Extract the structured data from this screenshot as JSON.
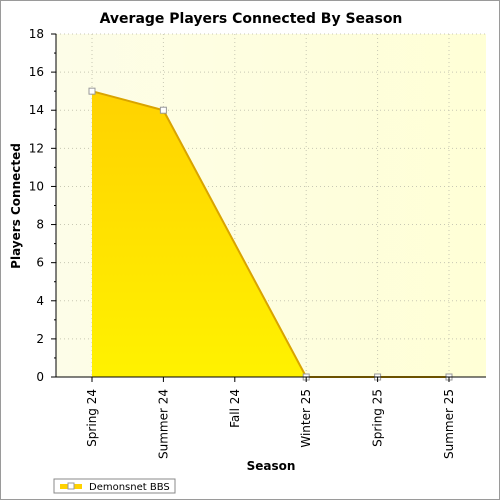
{
  "chart_data": {
    "type": "area",
    "title": "Average Players Connected By Season",
    "xlabel": "Season",
    "ylabel": "Players Connected",
    "categories": [
      "Spring 24",
      "Summer 24",
      "Fall 24",
      "Winter 25",
      "Spring 25",
      "Summer 25"
    ],
    "series": [
      {
        "name": "Demonsnet BBS",
        "values": [
          15,
          14,
          null,
          0,
          0,
          0
        ]
      }
    ],
    "ylim": [
      0,
      18
    ],
    "yticks": [
      "0",
      "2",
      "4",
      "6",
      "8",
      "10",
      "12",
      "14",
      "16",
      "18"
    ],
    "grid": true,
    "legend_position": "bottom-left",
    "colors": {
      "fill_top": "#ffd200",
      "fill_bottom": "#fff200",
      "line": "#d9a400",
      "plot_bg_left": "#fdfde8",
      "plot_bg_right": "#ffffd6",
      "grid": "#c8c8b4"
    }
  }
}
